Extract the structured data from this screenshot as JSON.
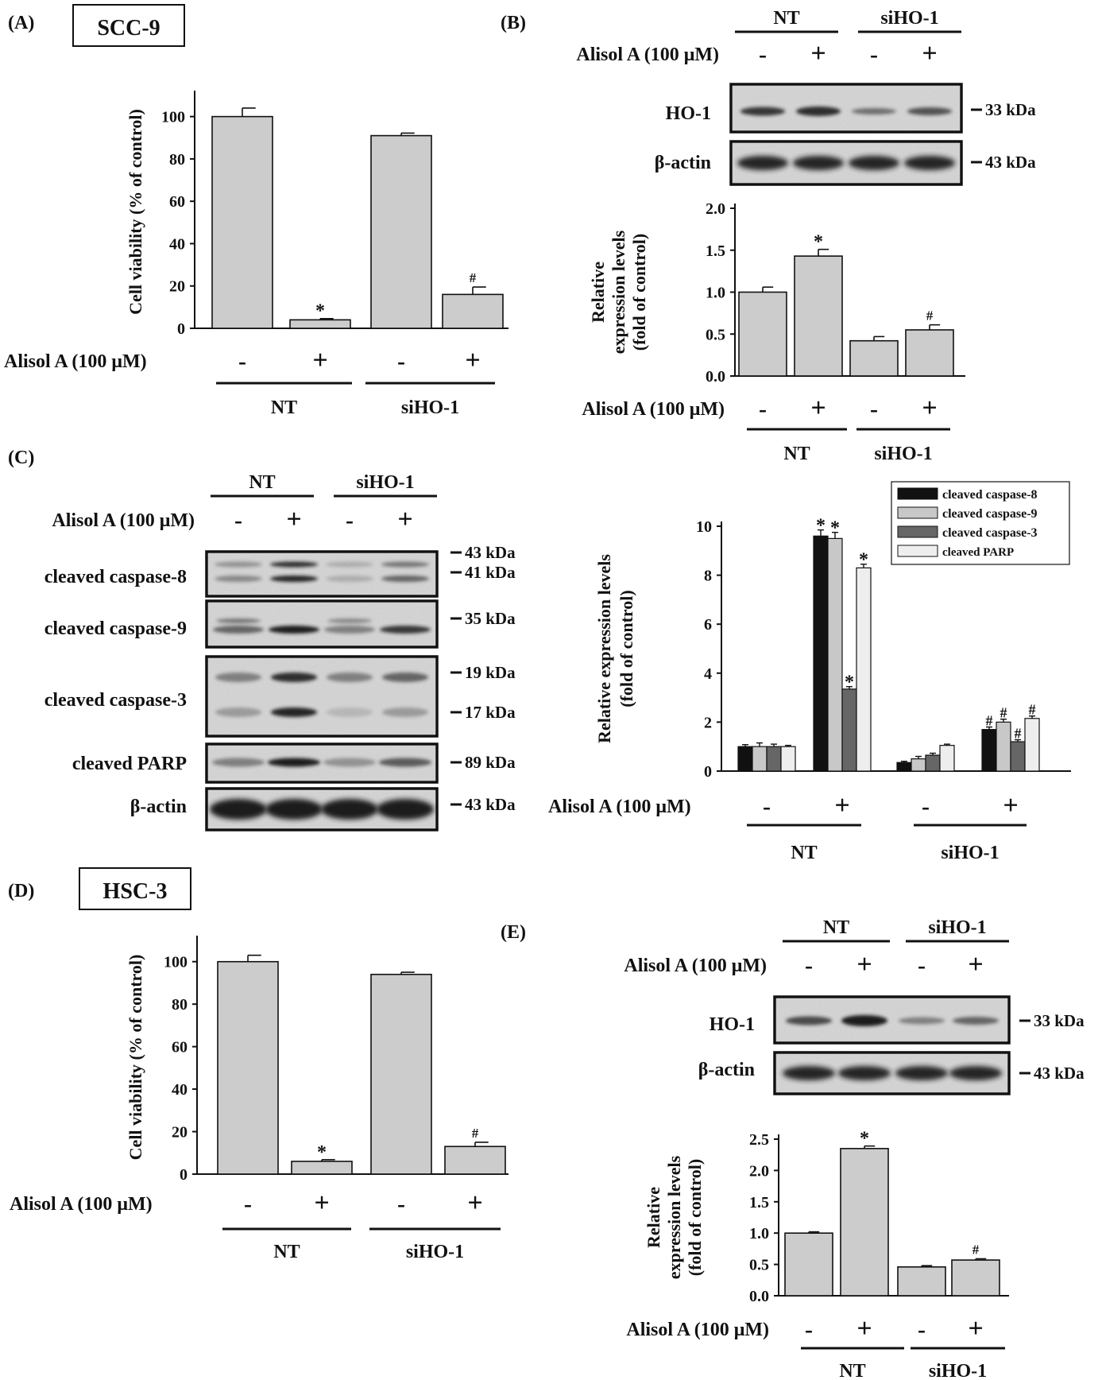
{
  "common": {
    "treatment_label": "Alisol A (100 μM)",
    "minus": "-",
    "plus": "+",
    "group_nt": "NT",
    "group_si": "siHO-1",
    "colors": {
      "bar": "#cccccc",
      "casp8": "#111111",
      "casp9": "#c8c8c8",
      "casp3": "#666666",
      "parp": "#eeeeee",
      "band": "#1b1b1b"
    }
  },
  "panels": {
    "a": {
      "letter": "(A)",
      "cell_line": "SCC-9"
    },
    "b": {
      "letter": "(B)"
    },
    "c": {
      "letter": "(C)"
    },
    "d": {
      "letter": "(D)",
      "cell_line": "HSC-3"
    },
    "e": {
      "letter": "(E)"
    }
  },
  "blots": {
    "b": {
      "proteins": [
        "HO-1",
        "β-actin"
      ],
      "markers": [
        "33 kDa",
        "43 kDa"
      ]
    },
    "c": {
      "proteins": [
        "cleaved caspase-8",
        "cleaved caspase-9",
        "cleaved caspase-3",
        "cleaved PARP",
        "β-actin"
      ],
      "markers": [
        "43 kDa",
        "41 kDa",
        "35 kDa",
        "19 kDa",
        "17 kDa",
        "89 kDa",
        "43 kDa"
      ]
    },
    "e": {
      "proteins": [
        "HO-1",
        "β-actin"
      ],
      "markers": [
        "33 kDa",
        "43 kDa"
      ]
    }
  },
  "chart_data": [
    {
      "panel": "A",
      "type": "bar",
      "categories": [
        "NT -",
        "NT +",
        "siHO-1 -",
        "siHO-1 +"
      ],
      "values": [
        100,
        4,
        91,
        16
      ],
      "errors": [
        4,
        0.6,
        1.2,
        3.5
      ],
      "annotations": [
        "",
        "*",
        "",
        "#"
      ],
      "ylabel": "Cell viability (% of control)",
      "yticks": [
        "0",
        "20",
        "40",
        "60",
        "80",
        "100"
      ],
      "ylim": [
        0,
        110
      ]
    },
    {
      "panel": "B",
      "type": "bar",
      "categories": [
        "NT -",
        "NT +",
        "siHO-1 -",
        "siHO-1 +"
      ],
      "values": [
        1.0,
        1.43,
        0.42,
        0.55
      ],
      "errors": [
        0.06,
        0.08,
        0.05,
        0.06
      ],
      "annotations": [
        "",
        "*",
        "",
        "#"
      ],
      "ylabel_lines": [
        "Relative",
        "expression levels",
        "(fold of control)"
      ],
      "yticks": [
        "0.0",
        "0.5",
        "1.0",
        "1.5",
        "2.0"
      ],
      "ylim": [
        0,
        2.0
      ]
    },
    {
      "panel": "C",
      "type": "bar",
      "categories": [
        "NT -",
        "NT +",
        "siHO-1 -",
        "siHO-1 +"
      ],
      "series": [
        {
          "name": "cleaved caspase-8",
          "values": [
            1.0,
            9.6,
            0.35,
            1.7
          ],
          "errors": [
            0.08,
            0.25,
            0.05,
            0.1
          ],
          "annotations": [
            "",
            "*",
            "",
            "#"
          ]
        },
        {
          "name": "cleaved caspase-9",
          "values": [
            1.0,
            9.5,
            0.5,
            2.0
          ],
          "errors": [
            0.15,
            0.25,
            0.1,
            0.12
          ],
          "annotations": [
            "",
            "*",
            "",
            "#"
          ]
        },
        {
          "name": "cleaved caspase-3",
          "values": [
            1.0,
            3.35,
            0.65,
            1.2
          ],
          "errors": [
            0.1,
            0.1,
            0.08,
            0.08
          ],
          "annotations": [
            "",
            "*",
            "",
            "#"
          ]
        },
        {
          "name": "cleaved PARP",
          "values": [
            1.0,
            8.3,
            1.05,
            2.15
          ],
          "errors": [
            0.05,
            0.15,
            0.05,
            0.1
          ],
          "annotations": [
            "",
            "*",
            "",
            "#"
          ]
        }
      ],
      "ylabel_lines": [
        "Relative expression levels",
        "(fold of control)"
      ],
      "yticks": [
        "0",
        "2",
        "4",
        "6",
        "8",
        "10"
      ],
      "ylim": [
        0,
        10
      ],
      "legend_position": "top-right"
    },
    {
      "panel": "D",
      "type": "bar",
      "categories": [
        "NT -",
        "NT +",
        "siHO-1 -",
        "siHO-1 +"
      ],
      "values": [
        100,
        6,
        94,
        13
      ],
      "errors": [
        3,
        0.8,
        1,
        2
      ],
      "annotations": [
        "",
        "*",
        "",
        "#"
      ],
      "ylabel": "Cell viability (% of control)",
      "yticks": [
        "0",
        "20",
        "40",
        "60",
        "80",
        "100"
      ],
      "ylim": [
        0,
        110
      ]
    },
    {
      "panel": "E",
      "type": "bar",
      "categories": [
        "NT -",
        "NT +",
        "siHO-1 -",
        "siHO-1 +"
      ],
      "values": [
        1.0,
        2.35,
        0.46,
        0.57
      ],
      "errors": [
        0.02,
        0.04,
        0.02,
        0.02
      ],
      "annotations": [
        "",
        "*",
        "",
        "#"
      ],
      "ylabel_lines": [
        "Relative",
        "expression levels",
        "(fold of control)"
      ],
      "yticks": [
        "0.0",
        "0.5",
        "1.0",
        "1.5",
        "2.0",
        "2.5"
      ],
      "ylim": [
        0,
        2.5
      ]
    }
  ]
}
